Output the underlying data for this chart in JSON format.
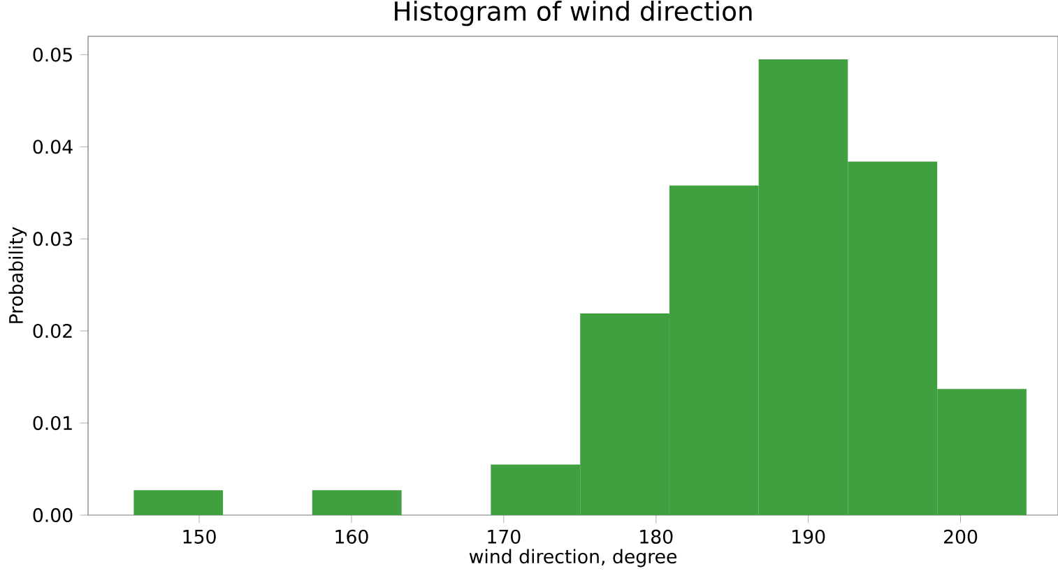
{
  "chart_data": {
    "type": "histogram",
    "title": "Histogram of wind direction",
    "xlabel": "wind direction, degree",
    "ylabel": "Probability",
    "bins": [
      145.7,
      151.56,
      157.42,
      163.29,
      169.15,
      175.02,
      180.88,
      186.74,
      192.6,
      198.47,
      204.33
    ],
    "values": [
      0.0027,
      0,
      0.0027,
      0,
      0.0055,
      0.0219,
      0.0358,
      0.0495,
      0.0384,
      0.0137
    ],
    "color": "#40a040",
    "xlim": [
      142.7,
      206.4
    ],
    "ylim": [
      0,
      0.052
    ],
    "xticks": [
      150,
      160,
      170,
      180,
      190,
      200
    ],
    "yticks": [
      {
        "value": 0,
        "label": "0.00"
      },
      {
        "value": 0.01,
        "label": "0.01"
      },
      {
        "value": 0.02,
        "label": "0.02"
      },
      {
        "value": 0.03,
        "label": "0.03"
      },
      {
        "value": 0.04,
        "label": "0.04"
      },
      {
        "value": 0.05,
        "label": "0.05"
      }
    ],
    "grid": false
  }
}
